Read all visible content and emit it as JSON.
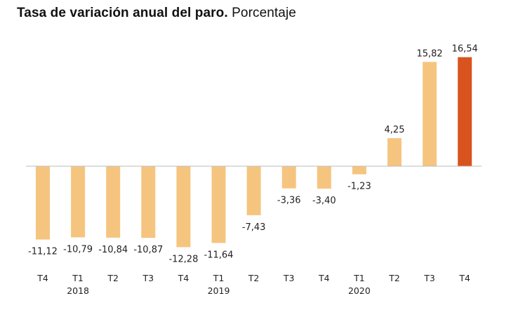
{
  "title": {
    "bold": "Tasa de variación anual del paro.",
    "subtitle": "Porcentaje"
  },
  "colors": {
    "bar": "#F5C57F",
    "highlight": "#D9531E",
    "axis": "#BBBBBB"
  },
  "chart_data": {
    "type": "bar",
    "title": "Tasa de variación anual del paro.",
    "subtitle": "Porcentaje",
    "categories": [
      "T4",
      "T1",
      "T2",
      "T3",
      "T4",
      "T1",
      "T2",
      "T3",
      "T4",
      "T1",
      "T2",
      "T3",
      "T4"
    ],
    "year_labels": [
      "",
      "2018",
      "",
      "",
      "",
      "2019",
      "",
      "",
      "",
      "2020",
      "",
      "",
      ""
    ],
    "values": [
      -11.12,
      -10.79,
      -10.84,
      -10.87,
      -12.28,
      -11.64,
      -7.43,
      -3.36,
      -3.4,
      -1.23,
      4.25,
      15.82,
      16.54
    ],
    "value_labels": [
      "-11,12",
      "-10,79",
      "-10,84",
      "-10,87",
      "-12,28",
      "-11,64",
      "-7,43",
      "-3,36",
      "-3,40",
      "-1,23",
      "4,25",
      "15,82",
      "16,54"
    ],
    "highlight_index": 12,
    "xlabel": "",
    "ylabel": "",
    "ylim": [
      -12.28,
      16.54
    ],
    "grid": false,
    "legend": "none"
  }
}
